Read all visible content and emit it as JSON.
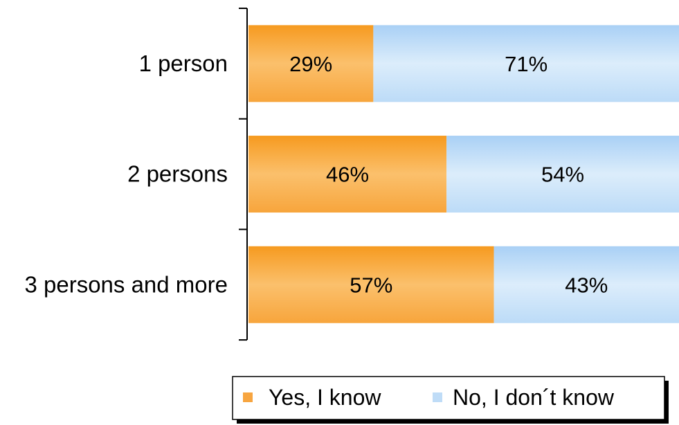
{
  "chart_data": {
    "type": "bar",
    "orientation": "horizontal",
    "stacked": "percent",
    "categories": [
      "1 person",
      "2 persons",
      "3 persons and more"
    ],
    "series": [
      {
        "name": "Yes, I know",
        "values": [
          29,
          46,
          57
        ],
        "labels": [
          "29%",
          "46%",
          "57%"
        ],
        "color": "#F7A540"
      },
      {
        "name": "No, I don´t know",
        "values": [
          71,
          54,
          43
        ],
        "labels": [
          "71%",
          "54%",
          "43%"
        ],
        "color": "#BFDCF7"
      }
    ],
    "xlim": [
      0,
      100
    ],
    "grid": false,
    "legend": "bottom-right",
    "title": "",
    "xlabel": "",
    "ylabel": ""
  }
}
